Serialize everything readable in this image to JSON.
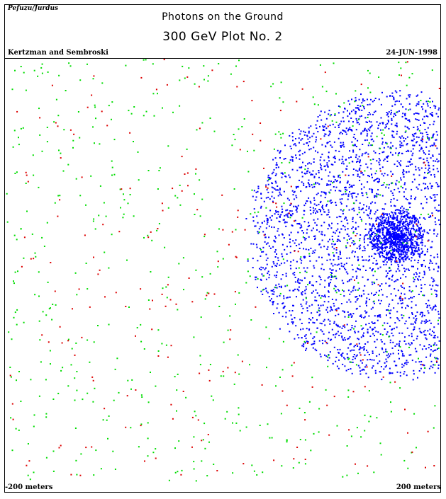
{
  "header": {
    "corner_label": "Pefuzu/Jurdus",
    "title": "Photons on the Ground",
    "subtitle": "300 GeV Plot No. 2",
    "authors": "Kertzman and Sembroski",
    "date": "24-JUN-1998"
  },
  "chart_data": {
    "type": "scatter",
    "title": "Photons on the Ground",
    "subtitle": "300 GeV Plot No. 2",
    "x_range": [
      -200,
      200
    ],
    "y_range": [
      -200,
      200
    ],
    "x_min_label": "-200 meters",
    "x_max_label": "200 meters",
    "unit": "meters",
    "grid": false,
    "legend": "none",
    "series": [
      {
        "color": "#0000ff",
        "distribution": "disk",
        "center": [
          159,
          33
        ],
        "radius": 140,
        "core_radius": 25,
        "count": 3800,
        "core_count": 900
      },
      {
        "color": "#00dd00",
        "distribution": "uniform",
        "count": 620
      },
      {
        "color": "#dd0000",
        "distribution": "uniform",
        "count": 230
      }
    ]
  }
}
